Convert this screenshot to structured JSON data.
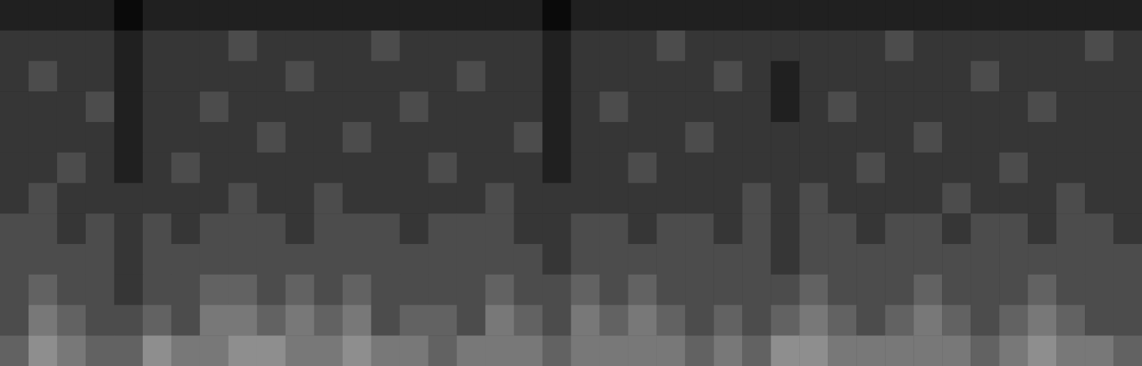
{
  "chart_data": {
    "type": "heatmap",
    "tick_labels": false,
    "color_range": [
      0,
      10
    ],
    "cells": [
      [
        1,
        1,
        1,
        1,
        0,
        1,
        1,
        1,
        1,
        1,
        1,
        1,
        1,
        1,
        1,
        1,
        1,
        1,
        1,
        0,
        1,
        1,
        1,
        1,
        1,
        1,
        1,
        1,
        1,
        1,
        1,
        1,
        1,
        1,
        1,
        1,
        1,
        1,
        1,
        1
      ],
      [
        2,
        2,
        2,
        2,
        1,
        2,
        2,
        2,
        3,
        2,
        2,
        2,
        2,
        3,
        2,
        2,
        2,
        2,
        2,
        1,
        2,
        2,
        2,
        3,
        2,
        2,
        2,
        2,
        2,
        2,
        2,
        3,
        2,
        2,
        2,
        2,
        2,
        2,
        3,
        2
      ],
      [
        2,
        3,
        2,
        2,
        1,
        2,
        2,
        2,
        2,
        2,
        3,
        2,
        2,
        2,
        2,
        2,
        3,
        2,
        2,
        1,
        2,
        2,
        2,
        2,
        2,
        3,
        2,
        1,
        2,
        2,
        2,
        2,
        2,
        2,
        3,
        2,
        2,
        2,
        2,
        2
      ],
      [
        2,
        2,
        2,
        3,
        1,
        2,
        2,
        3,
        2,
        2,
        2,
        2,
        2,
        2,
        3,
        2,
        2,
        2,
        2,
        1,
        2,
        3,
        2,
        2,
        2,
        2,
        2,
        1,
        2,
        3,
        2,
        2,
        2,
        2,
        2,
        2,
        3,
        2,
        2,
        2
      ],
      [
        2,
        2,
        2,
        2,
        1,
        2,
        2,
        2,
        2,
        3,
        2,
        2,
        3,
        2,
        2,
        2,
        2,
        2,
        3,
        1,
        2,
        2,
        2,
        2,
        3,
        2,
        2,
        2,
        2,
        2,
        2,
        2,
        3,
        2,
        2,
        2,
        2,
        2,
        2,
        2
      ],
      [
        2,
        2,
        3,
        2,
        1,
        2,
        3,
        2,
        2,
        2,
        2,
        2,
        2,
        2,
        2,
        3,
        2,
        2,
        2,
        1,
        2,
        2,
        3,
        2,
        2,
        2,
        2,
        2,
        2,
        2,
        3,
        2,
        2,
        2,
        2,
        3,
        2,
        2,
        2,
        2
      ],
      [
        2,
        3,
        2,
        2,
        2,
        2,
        2,
        2,
        3,
        2,
        2,
        3,
        2,
        2,
        2,
        2,
        2,
        3,
        2,
        2,
        2,
        2,
        2,
        2,
        2,
        2,
        3,
        2,
        3,
        2,
        2,
        2,
        2,
        3,
        2,
        2,
        2,
        3,
        2,
        2
      ],
      [
        3,
        3,
        2,
        3,
        2,
        3,
        2,
        3,
        3,
        3,
        2,
        3,
        3,
        3,
        2,
        3,
        3,
        3,
        2,
        2,
        3,
        3,
        2,
        3,
        3,
        2,
        3,
        2,
        3,
        3,
        2,
        3,
        3,
        2,
        3,
        3,
        2,
        3,
        3,
        2
      ],
      [
        3,
        3,
        3,
        3,
        2,
        3,
        3,
        3,
        3,
        3,
        3,
        3,
        3,
        3,
        3,
        3,
        3,
        3,
        3,
        2,
        3,
        3,
        3,
        3,
        3,
        3,
        3,
        2,
        3,
        3,
        3,
        3,
        3,
        3,
        3,
        3,
        3,
        3,
        3,
        3
      ],
      [
        3,
        4,
        3,
        3,
        2,
        3,
        3,
        4,
        4,
        3,
        4,
        3,
        4,
        3,
        3,
        3,
        3,
        4,
        3,
        3,
        4,
        3,
        4,
        3,
        3,
        3,
        3,
        3,
        4,
        3,
        3,
        3,
        4,
        3,
        3,
        3,
        4,
        3,
        3,
        3
      ],
      [
        3,
        5,
        4,
        3,
        3,
        4,
        3,
        5,
        5,
        4,
        5,
        4,
        5,
        3,
        4,
        4,
        3,
        5,
        4,
        3,
        5,
        4,
        5,
        4,
        3,
        4,
        3,
        4,
        5,
        4,
        3,
        4,
        5,
        4,
        3,
        4,
        5,
        4,
        3,
        3
      ],
      [
        4,
        6,
        5,
        4,
        4,
        6,
        5,
        5,
        6,
        6,
        5,
        5,
        6,
        5,
        5,
        4,
        5,
        5,
        5,
        4,
        5,
        5,
        5,
        5,
        4,
        5,
        4,
        6,
        6,
        5,
        5,
        5,
        5,
        5,
        4,
        5,
        6,
        5,
        5,
        4
      ]
    ]
  }
}
